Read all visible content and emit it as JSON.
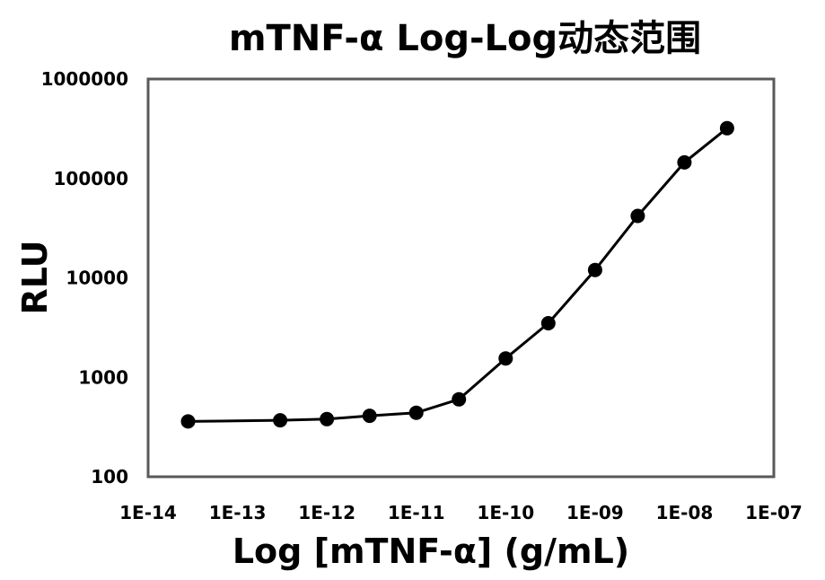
{
  "chart_data": {
    "type": "line",
    "title": "mTNF-α Log-Log动态范围",
    "xlabel": "Log [mTNF-α] (g/mL)",
    "ylabel": "RLU",
    "x_scale": "log",
    "y_scale": "log",
    "xlim": [
      1e-14,
      1e-07
    ],
    "ylim": [
      100,
      1000000
    ],
    "x_tick_values": [
      1e-14,
      1e-13,
      1e-12,
      1e-11,
      1e-10,
      1e-09,
      1e-08,
      1e-07
    ],
    "x_tick_labels": [
      "1E-14",
      "1E-13",
      "1E-12",
      "1E-11",
      "1E-10",
      "1E-09",
      "1E-08",
      "1E-07"
    ],
    "y_tick_values": [
      100,
      1000,
      10000,
      100000,
      1000000
    ],
    "y_tick_labels": [
      "100",
      "1000",
      "10000",
      "100000",
      "1000000"
    ],
    "grid": false,
    "legend": "none",
    "colors": {
      "line": "#000000",
      "marker": "#000000",
      "frame": "#595959",
      "background": "#ffffff"
    },
    "series": [
      {
        "x": [
          2.8e-14,
          3e-13,
          1e-12,
          3e-12,
          1e-11,
          3e-11,
          1e-10,
          3e-10,
          1e-09,
          3e-09,
          1e-08,
          3e-08
        ],
        "y": [
          360,
          370,
          380,
          410,
          440,
          600,
          1550,
          3500,
          12000,
          42000,
          145000,
          320000
        ]
      }
    ]
  }
}
